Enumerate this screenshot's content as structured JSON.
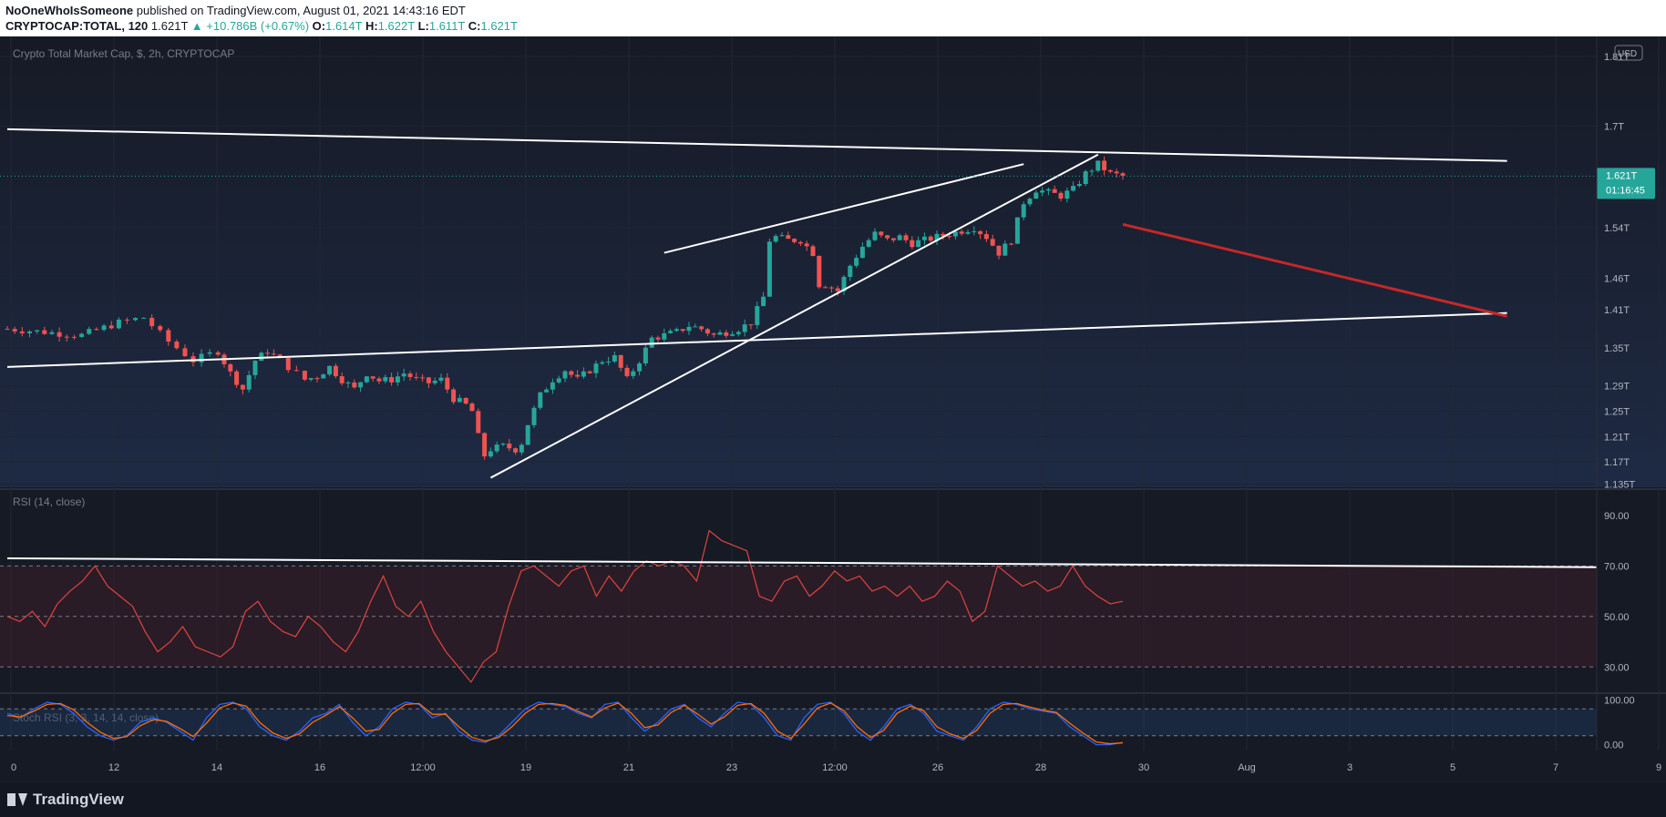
{
  "header": {
    "author": "NoOneWhoIsSomeone",
    "published_text": "published on TradingView.com, August 01, 2021 14:43:16 EDT",
    "symbol": "CRYPTOCAP:TOTAL, 120",
    "last": "1.621T",
    "change_icon": "triangle-up-icon",
    "change": "+10.786B (+0.67%)",
    "open_label": "O:",
    "open": "1.614T",
    "high_label": "H:",
    "high": "1.622T",
    "low_label": "L:",
    "low": "1.611T",
    "close_label": "C:",
    "close": "1.621T"
  },
  "main_pane": {
    "title": "Crypto Total Market Cap, $, 2h, CRYPTOCAP",
    "currency": "USD",
    "price_label": "1.621T",
    "countdown": "01:16:45"
  },
  "rsi_pane": {
    "title": "RSI (14, close)"
  },
  "stoch_pane": {
    "title": "Stoch RSI (3, 3, 14, 14, close)"
  },
  "footer": {
    "brand": "TradingView"
  },
  "colors": {
    "up": "#26a69a",
    "down": "#ef5350",
    "rsi_line": "#e0443e",
    "stoch_k": "#2962ff",
    "stoch_d": "#ff6d00",
    "trend_red": "#c62828",
    "trend_white": "#ffffff"
  },
  "chart_data": [
    {
      "type": "candlestick",
      "name": "Crypto Total Market Cap",
      "x_ticks": [
        "0",
        "12",
        "14",
        "16",
        "12:00",
        "19",
        "21",
        "23",
        "12:00",
        "26",
        "28",
        "30",
        "Aug",
        "3",
        "5",
        "7",
        "9"
      ],
      "y_ticks": [
        "1.81T",
        "1.7T",
        "1.54T",
        "1.46T",
        "1.41T",
        "1.35T",
        "1.29T",
        "1.25T",
        "1.21T",
        "1.17T",
        "1.135T"
      ],
      "ylim": [
        1.13,
        1.83
      ],
      "close_path": [
        [
          0,
          1.38
        ],
        [
          3,
          1.375
        ],
        [
          6,
          1.37
        ],
        [
          9,
          1.39
        ],
        [
          11,
          1.398
        ],
        [
          13,
          1.36
        ],
        [
          15,
          1.33
        ],
        [
          17,
          1.345
        ],
        [
          18,
          1.31
        ],
        [
          19,
          1.285
        ],
        [
          20,
          1.33
        ],
        [
          21,
          1.345
        ],
        [
          22,
          1.33
        ],
        [
          24,
          1.3
        ],
        [
          25,
          1.305
        ],
        [
          26,
          1.32
        ],
        [
          27,
          1.3
        ],
        [
          28,
          1.285
        ],
        [
          29,
          1.31
        ],
        [
          30,
          1.298
        ],
        [
          31,
          1.3
        ],
        [
          32,
          1.31
        ],
        [
          33,
          1.3
        ],
        [
          34,
          1.295
        ],
        [
          35,
          1.3
        ],
        [
          36,
          1.27
        ],
        [
          37,
          1.26
        ],
        [
          37.5,
          1.25
        ],
        [
          38,
          1.21
        ],
        [
          38.5,
          1.18
        ],
        [
          39,
          1.19
        ],
        [
          40,
          1.195
        ],
        [
          41,
          1.19
        ],
        [
          41.5,
          1.2
        ],
        [
          42,
          1.23
        ],
        [
          43,
          1.275
        ],
        [
          44,
          1.3
        ],
        [
          45,
          1.315
        ],
        [
          46,
          1.3
        ],
        [
          47,
          1.315
        ],
        [
          48,
          1.33
        ],
        [
          49,
          1.335
        ],
        [
          50,
          1.3
        ],
        [
          51,
          1.33
        ],
        [
          52,
          1.365
        ],
        [
          53,
          1.37
        ],
        [
          54,
          1.375
        ],
        [
          55,
          1.385
        ],
        [
          56,
          1.38
        ],
        [
          57,
          1.37
        ],
        [
          58,
          1.375
        ],
        [
          59,
          1.38
        ],
        [
          60,
          1.39
        ],
        [
          61,
          1.43
        ],
        [
          61.5,
          1.52
        ],
        [
          62,
          1.525
        ],
        [
          63,
          1.52
        ],
        [
          64,
          1.52
        ],
        [
          65,
          1.5
        ],
        [
          65.5,
          1.45
        ],
        [
          66,
          1.45
        ],
        [
          67,
          1.44
        ],
        [
          68,
          1.48
        ],
        [
          69,
          1.51
        ],
        [
          70,
          1.53
        ],
        [
          71,
          1.52
        ],
        [
          72,
          1.525
        ],
        [
          73,
          1.515
        ],
        [
          74,
          1.52
        ],
        [
          75,
          1.525
        ],
        [
          76,
          1.53
        ],
        [
          77,
          1.535
        ],
        [
          78,
          1.54
        ],
        [
          79,
          1.525
        ],
        [
          80,
          1.5
        ],
        [
          81,
          1.52
        ],
        [
          82,
          1.58
        ],
        [
          83,
          1.6
        ],
        [
          84,
          1.595
        ],
        [
          85,
          1.59
        ],
        [
          86,
          1.6
        ],
        [
          87,
          1.625
        ],
        [
          88,
          1.64
        ],
        [
          89,
          1.625
        ],
        [
          90,
          1.621
        ]
      ],
      "trend_lines": [
        {
          "name": "upper-channel",
          "color": "white",
          "from": [
            0,
            1.695
          ],
          "to": [
            121,
            1.645
          ]
        },
        {
          "name": "lower-channel",
          "color": "white",
          "from": [
            0,
            1.32
          ],
          "to": [
            121,
            1.405
          ]
        },
        {
          "name": "rising-support",
          "color": "white",
          "from": [
            39,
            1.145
          ],
          "to": [
            88,
            1.655
          ]
        },
        {
          "name": "rising-resistance",
          "color": "white",
          "from": [
            53,
            1.5
          ],
          "to": [
            82,
            1.64
          ]
        },
        {
          "name": "projection",
          "color": "red",
          "from": [
            90,
            1.545
          ],
          "to": [
            121,
            1.4
          ]
        }
      ]
    },
    {
      "type": "line",
      "name": "RSI (14, close)",
      "y_ticks": [
        "90.00",
        "70.00",
        "50.00",
        "30.00"
      ],
      "ylim": [
        20,
        95
      ],
      "bands": [
        30,
        70
      ],
      "values": [
        50,
        48,
        52,
        46,
        55,
        60,
        64,
        70,
        62,
        58,
        54,
        44,
        36,
        40,
        46,
        38,
        36,
        34,
        38,
        52,
        56,
        48,
        44,
        42,
        50,
        46,
        40,
        36,
        44,
        56,
        66,
        54,
        50,
        56,
        44,
        36,
        30,
        24,
        32,
        36,
        54,
        68,
        70,
        66,
        62,
        68,
        70,
        58,
        66,
        60,
        68,
        72,
        70,
        72,
        70,
        64,
        84,
        80,
        78,
        76,
        58,
        56,
        64,
        66,
        58,
        62,
        68,
        64,
        66,
        60,
        62,
        58,
        62,
        56,
        58,
        64,
        60,
        48,
        52,
        70,
        66,
        62,
        64,
        60,
        62,
        70,
        62,
        58,
        55,
        56
      ]
    },
    {
      "type": "line",
      "name": "Stoch RSI (3, 3, 14, 14, close)",
      "y_ticks": [
        "100.00",
        "0.00"
      ],
      "ylim": [
        -5,
        105
      ],
      "bands": [
        20,
        80
      ],
      "series": [
        {
          "name": "%K",
          "values": [
            70,
            60,
            80,
            95,
            90,
            70,
            40,
            20,
            10,
            20,
            50,
            60,
            50,
            30,
            10,
            60,
            90,
            95,
            80,
            40,
            20,
            10,
            30,
            60,
            70,
            90,
            50,
            20,
            40,
            80,
            95,
            90,
            60,
            70,
            30,
            10,
            5,
            20,
            50,
            80,
            95,
            90,
            85,
            70,
            60,
            90,
            95,
            60,
            30,
            50,
            80,
            90,
            60,
            40,
            70,
            95,
            90,
            60,
            20,
            10,
            60,
            90,
            95,
            70,
            30,
            10,
            40,
            80,
            90,
            70,
            30,
            20,
            10,
            40,
            80,
            95,
            90,
            80,
            75,
            70,
            40,
            20,
            0,
            0,
            5
          ]
        },
        {
          "name": "%D",
          "values": [
            65,
            62,
            75,
            90,
            92,
            78,
            50,
            28,
            14,
            18,
            42,
            56,
            52,
            36,
            18,
            48,
            82,
            93,
            86,
            50,
            26,
            14,
            24,
            50,
            66,
            85,
            60,
            30,
            34,
            70,
            90,
            92,
            68,
            68,
            40,
            16,
            8,
            16,
            40,
            70,
            90,
            92,
            88,
            74,
            62,
            82,
            93,
            70,
            38,
            44,
            72,
            88,
            68,
            46,
            62,
            88,
            92,
            70,
            30,
            14,
            46,
            82,
            93,
            76,
            40,
            16,
            32,
            70,
            86,
            76,
            40,
            24,
            14,
            32,
            70,
            90,
            92,
            84,
            77,
            72,
            48,
            26,
            6,
            2,
            4
          ]
        }
      ]
    }
  ]
}
